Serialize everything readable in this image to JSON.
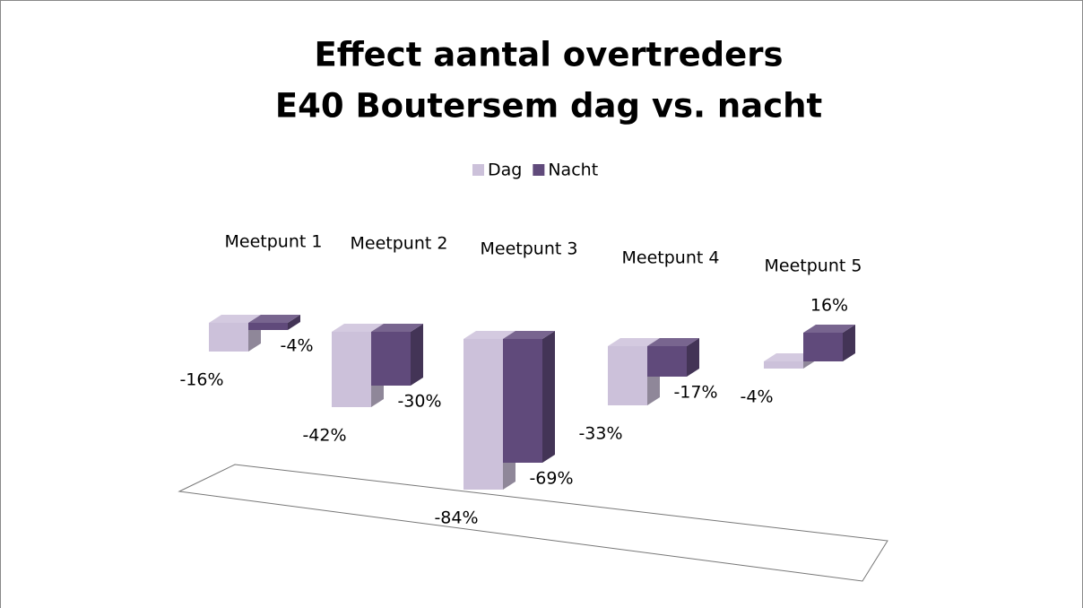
{
  "chart_data": {
    "type": "bar",
    "title": [
      "Effect aantal overtreders",
      "E40 Boutersem dag vs. nacht"
    ],
    "categories": [
      "Meetpunt 1",
      "Meetpunt 2",
      "Meetpunt 3",
      "Meetpunt 4",
      "Meetpunt 5"
    ],
    "series": [
      {
        "name": "Dag",
        "color": "#ccc1da",
        "values": [
          -16,
          -42,
          -84,
          -33,
          -4
        ],
        "value_labels": [
          "-16%",
          "-42%",
          "-84%",
          "-33%",
          "-4%"
        ]
      },
      {
        "name": "Nacht",
        "color": "#604a7b",
        "values": [
          -4,
          -30,
          -69,
          -17,
          16
        ],
        "value_labels": [
          "-4%",
          "-30%",
          "-69%",
          "-17%",
          "16%"
        ]
      }
    ],
    "legend": "top"
  }
}
